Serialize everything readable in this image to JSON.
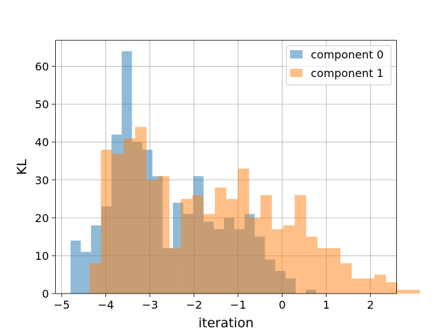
{
  "chart_data": {
    "type": "bar",
    "subtype": "overlaid-histogram",
    "title": "",
    "xlabel": "iteration",
    "ylabel": "KL",
    "xlim": [
      -5.15,
      2.6
    ],
    "ylim": [
      0,
      67
    ],
    "grid": true,
    "legend_position": "top-right",
    "x_ticks": [
      -5,
      -4,
      -3,
      -2,
      -1,
      0,
      1,
      2
    ],
    "x_tick_labels": [
      "−5",
      "−4",
      "−3",
      "−2",
      "−1",
      "0",
      "1",
      "2"
    ],
    "y_ticks": [
      0,
      10,
      20,
      30,
      40,
      50,
      60
    ],
    "y_tick_labels": [
      "0",
      "10",
      "20",
      "30",
      "40",
      "50",
      "60"
    ],
    "series": [
      {
        "name": "component 0",
        "color": "#1f77b4",
        "alpha": 0.5,
        "bin_start": -4.8,
        "bin_width": 0.232,
        "counts": [
          14,
          11,
          18,
          23,
          42,
          64,
          40,
          38,
          31,
          12,
          24,
          21,
          31,
          19,
          17,
          20,
          17,
          21,
          15,
          9,
          6,
          4,
          0,
          1
        ]
      },
      {
        "name": "component 1",
        "color": "#ff7f0e",
        "alpha": 0.5,
        "bin_start": -4.37,
        "bin_width": 0.2585,
        "counts": [
          8,
          38,
          37,
          41,
          44,
          30,
          31,
          12,
          25,
          26,
          21,
          28,
          25,
          33,
          20,
          26,
          17,
          18,
          26,
          15,
          12,
          12,
          8,
          4,
          4,
          5,
          3,
          1,
          1
        ]
      }
    ]
  }
}
